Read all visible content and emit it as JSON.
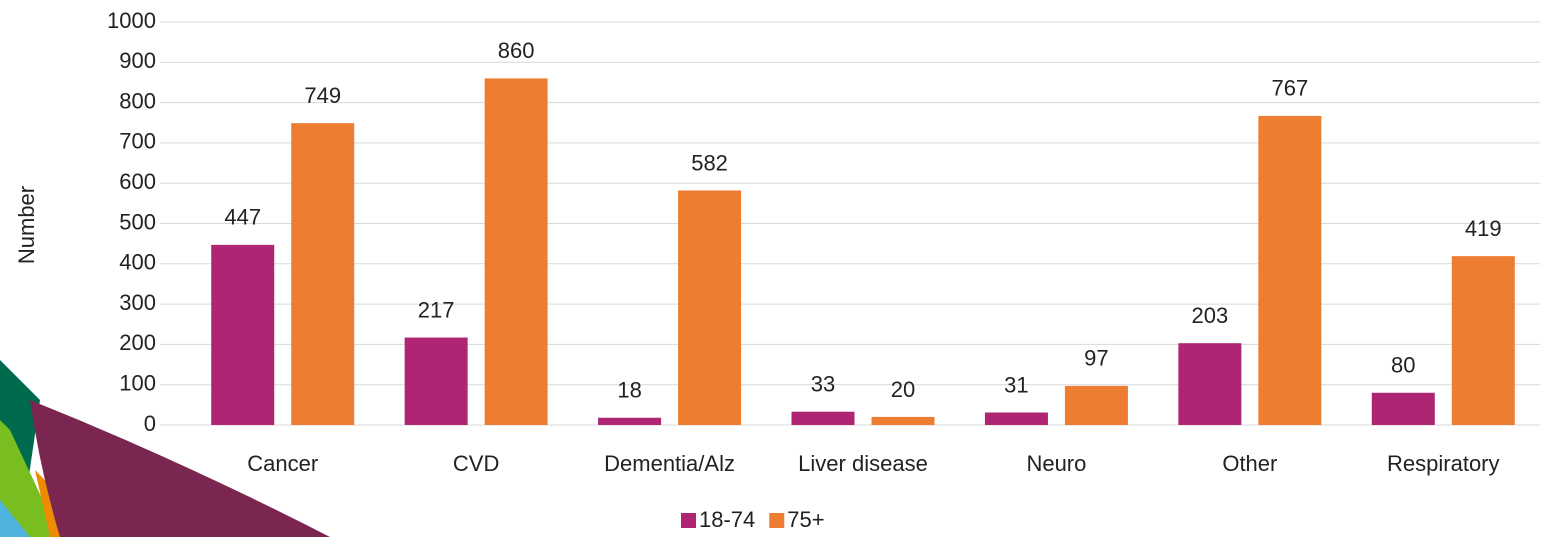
{
  "chart_data": {
    "type": "bar",
    "y_label": "Number",
    "categories": [
      "Cancer",
      "CVD",
      "Dementia/Alz",
      "Liver disease",
      "Neuro",
      "Other",
      "Respiratory"
    ],
    "series": [
      {
        "name": "18-74",
        "color": "#ae2573",
        "values": [
          447,
          217,
          18,
          33,
          31,
          203,
          80
        ]
      },
      {
        "name": "75+",
        "color": "#ed7d31",
        "values": [
          749,
          860,
          582,
          20,
          97,
          767,
          419
        ]
      }
    ],
    "ylim": [
      0,
      1000
    ],
    "yticks": [
      0,
      100,
      200,
      300,
      400,
      500,
      600,
      700,
      800,
      900,
      1000
    ],
    "grid": true,
    "legend": "bottom"
  }
}
